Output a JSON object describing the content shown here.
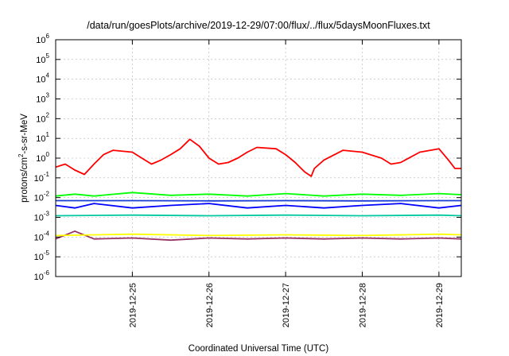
{
  "chart_data": {
    "type": "line",
    "title": "/data/run/goesPlots/archive/2019-12-29/07:00/flux/../flux/5daysMoonFluxes.txt",
    "xlabel": "Coordinated Universal Time (UTC)",
    "ylabel": "protons/cm2-s-sr-MeV",
    "ylabel_parts": [
      "protons/cm",
      "2",
      "-s-sr-MeV"
    ],
    "yscale": "log",
    "ylim": [
      1e-06,
      1000000.0
    ],
    "y_ticks": [
      {
        "base": "10",
        "exp": "-6",
        "value": 1e-06
      },
      {
        "base": "10",
        "exp": "-5",
        "value": 1e-05
      },
      {
        "base": "10",
        "exp": "-4",
        "value": 0.0001
      },
      {
        "base": "10",
        "exp": "-3",
        "value": 0.001
      },
      {
        "base": "10",
        "exp": "-2",
        "value": 0.01
      },
      {
        "base": "10",
        "exp": "-1",
        "value": 0.1
      },
      {
        "base": "10",
        "exp": "0",
        "value": 1
      },
      {
        "base": "10",
        "exp": "1",
        "value": 10
      },
      {
        "base": "10",
        "exp": "2",
        "value": 100
      },
      {
        "base": "10",
        "exp": "3",
        "value": 1000
      },
      {
        "base": "10",
        "exp": "4",
        "value": 10000
      },
      {
        "base": "10",
        "exp": "5",
        "value": 100000
      },
      {
        "base": "10",
        "exp": "6",
        "value": 1000000
      }
    ],
    "xlim": [
      "2019-12-24T00:00",
      "2019-12-29T07:00"
    ],
    "x_ticks": [
      "2019-12-25",
      "2019-12-26",
      "2019-12-27",
      "2019-12-28",
      "2019-12-29"
    ],
    "grid": true,
    "legend": "none",
    "series": [
      {
        "color": "#ff0000",
        "points": [
          [
            "2019-12-24T00:00",
            0.35
          ],
          [
            "2019-12-24T03:00",
            0.5
          ],
          [
            "2019-12-24T06:00",
            0.25
          ],
          [
            "2019-12-24T09:00",
            0.15
          ],
          [
            "2019-12-24T12:00",
            0.5
          ],
          [
            "2019-12-24T15:00",
            1.5
          ],
          [
            "2019-12-24T18:00",
            2.5
          ],
          [
            "2019-12-25T00:00",
            2.0
          ],
          [
            "2019-12-25T03:00",
            1.0
          ],
          [
            "2019-12-25T06:00",
            0.5
          ],
          [
            "2019-12-25T09:00",
            0.8
          ],
          [
            "2019-12-25T12:00",
            1.5
          ],
          [
            "2019-12-25T15:00",
            3.0
          ],
          [
            "2019-12-25T18:00",
            9.0
          ],
          [
            "2019-12-25T21:00",
            4.0
          ],
          [
            "2019-12-26T00:00",
            1.0
          ],
          [
            "2019-12-26T03:00",
            0.5
          ],
          [
            "2019-12-26T06:00",
            0.6
          ],
          [
            "2019-12-26T09:00",
            1.0
          ],
          [
            "2019-12-26T12:00",
            2.0
          ],
          [
            "2019-12-26T15:00",
            3.5
          ],
          [
            "2019-12-26T21:00",
            3.0
          ],
          [
            "2019-12-27T00:00",
            1.5
          ],
          [
            "2019-12-27T03:00",
            0.6
          ],
          [
            "2019-12-27T06:00",
            0.2
          ],
          [
            "2019-12-27T08:00",
            0.12
          ],
          [
            "2019-12-27T09:00",
            0.3
          ],
          [
            "2019-12-27T12:00",
            0.8
          ],
          [
            "2019-12-27T18:00",
            2.5
          ],
          [
            "2019-12-28T00:00",
            2.0
          ],
          [
            "2019-12-28T06:00",
            1.0
          ],
          [
            "2019-12-28T09:00",
            0.5
          ],
          [
            "2019-12-28T12:00",
            0.6
          ],
          [
            "2019-12-28T18:00",
            2.0
          ],
          [
            "2019-12-29T00:00",
            3.0
          ],
          [
            "2019-12-29T03:00",
            0.8
          ],
          [
            "2019-12-29T05:00",
            0.3
          ],
          [
            "2019-12-29T07:00",
            0.3
          ]
        ]
      },
      {
        "color": "#00ff00",
        "points": [
          [
            "2019-12-24T00:00",
            0.012
          ],
          [
            "2019-12-24T06:00",
            0.015
          ],
          [
            "2019-12-24T12:00",
            0.012
          ],
          [
            "2019-12-25T00:00",
            0.018
          ],
          [
            "2019-12-25T12:00",
            0.013
          ],
          [
            "2019-12-26T00:00",
            0.015
          ],
          [
            "2019-12-26T12:00",
            0.012
          ],
          [
            "2019-12-27T00:00",
            0.016
          ],
          [
            "2019-12-27T12:00",
            0.012
          ],
          [
            "2019-12-28T00:00",
            0.015
          ],
          [
            "2019-12-28T12:00",
            0.013
          ],
          [
            "2019-12-29T00:00",
            0.016
          ],
          [
            "2019-12-29T07:00",
            0.014
          ]
        ]
      },
      {
        "color": "#0000ff",
        "points": [
          [
            "2019-12-24T00:00",
            0.004
          ],
          [
            "2019-12-24T06:00",
            0.003
          ],
          [
            "2019-12-24T12:00",
            0.005
          ],
          [
            "2019-12-25T00:00",
            0.003
          ],
          [
            "2019-12-25T12:00",
            0.004
          ],
          [
            "2019-12-26T00:00",
            0.005
          ],
          [
            "2019-12-26T12:00",
            0.003
          ],
          [
            "2019-12-27T00:00",
            0.004
          ],
          [
            "2019-12-27T12:00",
            0.003
          ],
          [
            "2019-12-28T00:00",
            0.004
          ],
          [
            "2019-12-28T12:00",
            0.005
          ],
          [
            "2019-12-29T00:00",
            0.003
          ],
          [
            "2019-12-29T07:00",
            0.004
          ]
        ]
      },
      {
        "color": "#1a3cd6",
        "points": [
          [
            "2019-12-24T00:00",
            0.007
          ],
          [
            "2019-12-25T00:00",
            0.007
          ],
          [
            "2019-12-26T00:00",
            0.0068
          ],
          [
            "2019-12-27T00:00",
            0.007
          ],
          [
            "2019-12-28T00:00",
            0.0068
          ],
          [
            "2019-12-29T00:00",
            0.007
          ],
          [
            "2019-12-29T07:00",
            0.007
          ]
        ]
      },
      {
        "color": "#00c8a0",
        "points": [
          [
            "2019-12-24T00:00",
            0.0012
          ],
          [
            "2019-12-25T00:00",
            0.0013
          ],
          [
            "2019-12-26T00:00",
            0.0012
          ],
          [
            "2019-12-27T00:00",
            0.0013
          ],
          [
            "2019-12-28T00:00",
            0.0012
          ],
          [
            "2019-12-29T00:00",
            0.0013
          ],
          [
            "2019-12-29T07:00",
            0.0012
          ]
        ]
      },
      {
        "color": "#ffff00",
        "points": [
          [
            "2019-12-24T00:00",
            0.00012
          ],
          [
            "2019-12-25T00:00",
            0.00014
          ],
          [
            "2019-12-26T00:00",
            0.00012
          ],
          [
            "2019-12-27T00:00",
            0.00013
          ],
          [
            "2019-12-28T00:00",
            0.00012
          ],
          [
            "2019-12-29T00:00",
            0.00014
          ],
          [
            "2019-12-29T07:00",
            0.00013
          ]
        ]
      },
      {
        "color": "#993366",
        "points": [
          [
            "2019-12-24T00:00",
            8e-05
          ],
          [
            "2019-12-24T06:00",
            0.0002
          ],
          [
            "2019-12-24T12:00",
            8e-05
          ],
          [
            "2019-12-25T00:00",
            9e-05
          ],
          [
            "2019-12-25T12:00",
            7e-05
          ],
          [
            "2019-12-26T00:00",
            9e-05
          ],
          [
            "2019-12-26T12:00",
            8e-05
          ],
          [
            "2019-12-27T00:00",
            9e-05
          ],
          [
            "2019-12-27T12:00",
            8e-05
          ],
          [
            "2019-12-28T00:00",
            9e-05
          ],
          [
            "2019-12-28T12:00",
            8e-05
          ],
          [
            "2019-12-29T00:00",
            9e-05
          ],
          [
            "2019-12-29T07:00",
            8e-05
          ]
        ]
      }
    ]
  }
}
